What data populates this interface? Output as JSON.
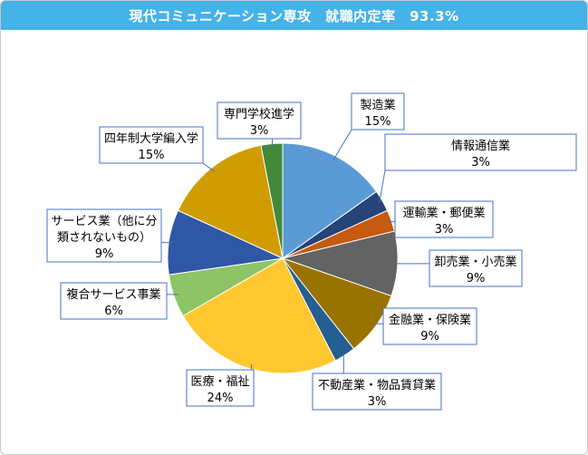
{
  "chart_data": {
    "type": "pie",
    "title": "現代コミュニケーション専攻　就職内定率　93.3%",
    "start_angle_deg": 0,
    "slices": [
      {
        "label": "製造業",
        "value": 15,
        "pct_text": "15%",
        "color": "#5b9bd5"
      },
      {
        "label": "情報通信業",
        "value": 3,
        "pct_text": "3%",
        "color": "#264478"
      },
      {
        "label": "運輸業・郵便業",
        "value": 3,
        "pct_text": "3%",
        "color": "#c55a11"
      },
      {
        "label": "卸売業・小売業",
        "value": 9,
        "pct_text": "9%",
        "color": "#636363"
      },
      {
        "label": "金融業・保険業",
        "value": 9,
        "pct_text": "9%",
        "color": "#997300"
      },
      {
        "label": "不動産業・物品賃貸業",
        "value": 3,
        "pct_text": "3%",
        "color": "#255e91"
      },
      {
        "label": "医療・福祉",
        "value": 24,
        "pct_text": "24%",
        "color": "#ffc830"
      },
      {
        "label": "複合サービス事業",
        "value": 6,
        "pct_text": "6%",
        "color": "#8cc466"
      },
      {
        "label": "サービス業（他に分類されないもの）",
        "label_lines": [
          "サービス業（他に分",
          "類されないもの）"
        ],
        "value": 9,
        "pct_text": "9%",
        "color": "#2e57a4"
      },
      {
        "label": "四年制大学編入学",
        "value": 15,
        "pct_text": "15%",
        "color": "#d09c00"
      },
      {
        "label": "専門学校進学",
        "value": 3,
        "pct_text": "3%",
        "color": "#43893a"
      }
    ]
  }
}
